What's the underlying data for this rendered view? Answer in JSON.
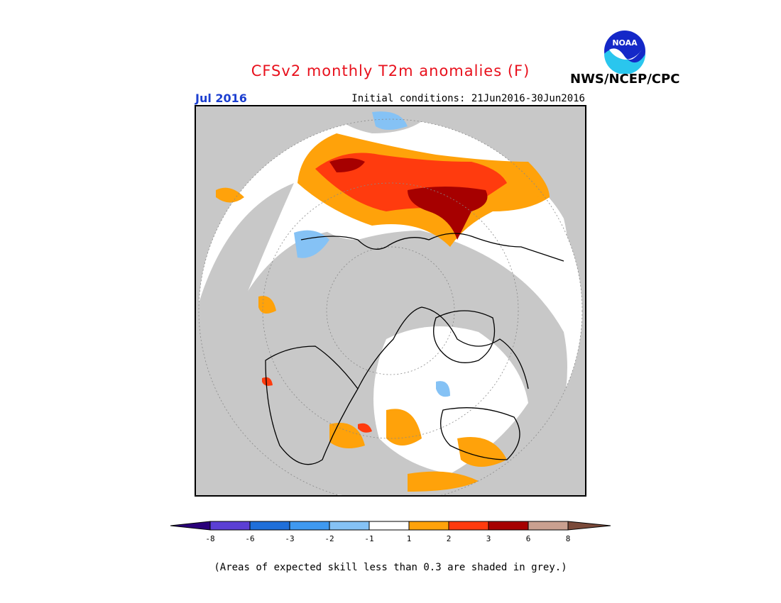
{
  "header": {
    "title": "CFSv2 monthly T2m anomalies (F)",
    "month": "Jul 2016",
    "initial_conditions": "Initial conditions: 21Jun2016-30Jun2016",
    "agency": "NWS/NCEP/CPC",
    "logo_text": "NOAA"
  },
  "colors": {
    "title": "#e8101c",
    "month": "#1c3fd0",
    "grey_mask": "#c8c8c8",
    "land_white": "#ffffff",
    "below_8": "#2a007a",
    "m8_m6": "#5b3fd4",
    "m6_m3": "#1f6fd9",
    "m3_m2": "#3f99f0",
    "m2_m1": "#85c2f5",
    "m1_1": "#ffffff",
    "p1_2": "#ffa20a",
    "p2_3": "#ff3b0e",
    "p3_6": "#a60000",
    "p6_8": "#c9a090",
    "above_8": "#7a4a3a"
  },
  "colorbar": {
    "ticks": [
      "-8",
      "-6",
      "-3",
      "-2",
      "-1",
      "1",
      "2",
      "3",
      "6",
      "8"
    ]
  },
  "footnote": "(Areas of expected skill less than 0.3 are shaded in grey.)"
}
